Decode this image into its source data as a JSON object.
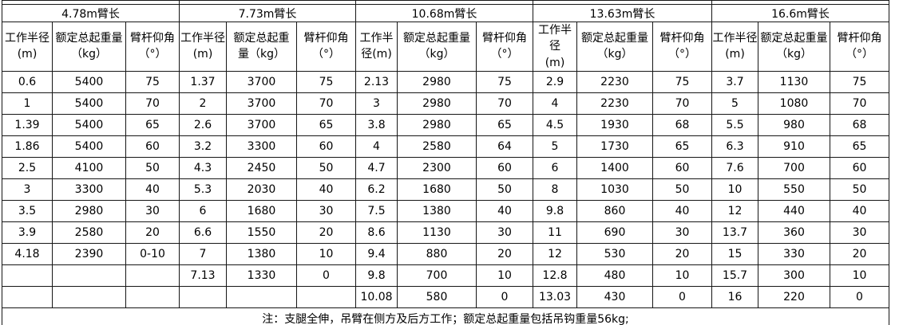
{
  "table": {
    "groups": [
      {
        "title": "4.78m臂长",
        "headers": [
          "工作半径\n(m)",
          "额定总起重量\n（kg）",
          "臂杆仰角\n（°）"
        ],
        "rows": [
          [
            "0.6",
            "5400",
            "75"
          ],
          [
            "1",
            "5400",
            "70"
          ],
          [
            "1.39",
            "5400",
            "65"
          ],
          [
            "1.86",
            "5400",
            "60"
          ],
          [
            "2.5",
            "4100",
            "50"
          ],
          [
            "3",
            "3300",
            "40"
          ],
          [
            "3.5",
            "2980",
            "30"
          ],
          [
            "3.9",
            "2580",
            "20"
          ],
          [
            "4.18",
            "2390",
            "0-10"
          ],
          [
            "",
            "",
            ""
          ],
          [
            "",
            "",
            ""
          ]
        ]
      },
      {
        "title": "7.73m臂长",
        "headers": [
          "工作半径\n(m)",
          "额定总起重\n量（kg）",
          "臂杆仰角\n（°）"
        ],
        "rows": [
          [
            "1.37",
            "3700",
            "75"
          ],
          [
            "2",
            "3700",
            "70"
          ],
          [
            "2.6",
            "3700",
            "65"
          ],
          [
            "3.2",
            "3300",
            "60"
          ],
          [
            "4.3",
            "2450",
            "50"
          ],
          [
            "5.3",
            "2030",
            "40"
          ],
          [
            "6",
            "1680",
            "30"
          ],
          [
            "6.6",
            "1550",
            "20"
          ],
          [
            "7",
            "1380",
            "10"
          ],
          [
            "7.13",
            "1330",
            "0"
          ],
          [
            "",
            "",
            ""
          ]
        ]
      },
      {
        "title": "10.68m臂长",
        "headers": [
          "工作半\n径(m)",
          "额定总起重量\n（kg）",
          "臂杆仰角\n（°）"
        ],
        "rows": [
          [
            "2.13",
            "2980",
            "75"
          ],
          [
            "3",
            "2980",
            "70"
          ],
          [
            "3.8",
            "2980",
            "65"
          ],
          [
            "4",
            "2580",
            "64"
          ],
          [
            "4.7",
            "2300",
            "60"
          ],
          [
            "6.2",
            "1680",
            "50"
          ],
          [
            "7.5",
            "1380",
            "40"
          ],
          [
            "8.6",
            "1130",
            "30"
          ],
          [
            "9.4",
            "880",
            "20"
          ],
          [
            "9.8",
            "700",
            "10"
          ],
          [
            "10.08",
            "580",
            "0"
          ]
        ]
      },
      {
        "title": "13.63m臂长",
        "headers": [
          "工作半径\n(m)",
          "额定总起重量\n（kg）",
          "臂杆仰角\n（°）"
        ],
        "rows": [
          [
            "2.9",
            "2230",
            "75"
          ],
          [
            "4",
            "2230",
            "70"
          ],
          [
            "4.5",
            "1930",
            "68"
          ],
          [
            "5",
            "1730",
            "65"
          ],
          [
            "6",
            "1400",
            "60"
          ],
          [
            "8",
            "1030",
            "50"
          ],
          [
            "9.8",
            "860",
            "40"
          ],
          [
            "11",
            "690",
            "30"
          ],
          [
            "12",
            "530",
            "20"
          ],
          [
            "12.8",
            "480",
            "10"
          ],
          [
            "13.03",
            "430",
            "0"
          ]
        ]
      },
      {
        "title": "16.6m臂长",
        "headers": [
          "工作半径\n(m)",
          "额定总起重量\n（kg）",
          "臂杆仰角\n（°）"
        ],
        "rows": [
          [
            "3.7",
            "1130",
            "75"
          ],
          [
            "5",
            "1080",
            "70"
          ],
          [
            "5.5",
            "980",
            "68"
          ],
          [
            "6.3",
            "910",
            "65"
          ],
          [
            "7.6",
            "700",
            "60"
          ],
          [
            "10",
            "550",
            "50"
          ],
          [
            "12",
            "440",
            "40"
          ],
          [
            "13.7",
            "360",
            "30"
          ],
          [
            "15",
            "330",
            "20"
          ],
          [
            "15.7",
            "300",
            "10"
          ],
          [
            "16",
            "220",
            "0"
          ]
        ]
      }
    ],
    "note": "注：支腿全伸，吊臂在侧方及后方工作；额定总起重量包括吊钩重量56kg;"
  },
  "colors": {
    "border": "#161616",
    "text": "#000000",
    "cell_background": "#ffffff"
  }
}
